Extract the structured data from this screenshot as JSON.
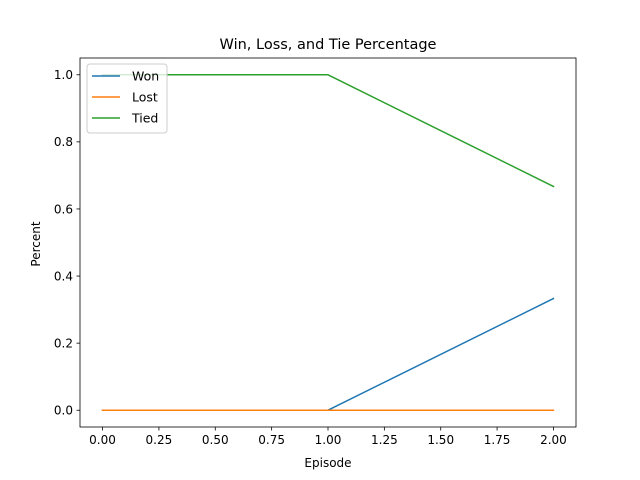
{
  "chart_data": {
    "type": "line",
    "title": "Win, Loss, and Tie Percentage",
    "xlabel": "Episode",
    "ylabel": "Percent",
    "xlim": [
      -0.1,
      2.1
    ],
    "ylim": [
      -0.05,
      1.05
    ],
    "xticks": [
      "0.00",
      "0.25",
      "0.50",
      "0.75",
      "1.00",
      "1.25",
      "1.50",
      "1.75",
      "2.00"
    ],
    "yticks": [
      "0.0",
      "0.2",
      "0.4",
      "0.6",
      "0.8",
      "1.0"
    ],
    "grid": false,
    "legend_position": "top-left",
    "x": [
      0,
      1,
      2
    ],
    "series": [
      {
        "name": "Won",
        "color": "#1f77b4",
        "values": [
          0.0,
          0.0,
          0.333
        ]
      },
      {
        "name": "Lost",
        "color": "#ff7f0e",
        "values": [
          0.0,
          0.0,
          0.0
        ]
      },
      {
        "name": "Tied",
        "color": "#2ca02c",
        "values": [
          1.0,
          1.0,
          0.667
        ]
      }
    ]
  }
}
